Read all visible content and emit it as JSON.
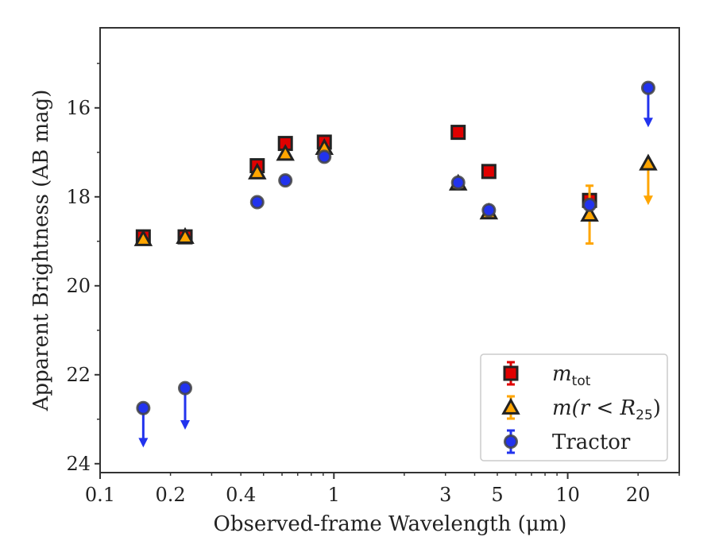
{
  "chart_data": {
    "type": "scatter",
    "xlabel": "Observed-frame Wavelength (μm)",
    "ylabel": "Apparent Brightness (AB mag)",
    "xscale": "log",
    "xlim": [
      0.1,
      30
    ],
    "ylim": [
      24.2,
      14.2
    ],
    "y_inverted": true,
    "xticks": [
      {
        "value": 0.1,
        "label": "0.1"
      },
      {
        "value": 0.2,
        "label": "0.2"
      },
      {
        "value": 0.4,
        "label": "0.4"
      },
      {
        "value": 1,
        "label": "1"
      },
      {
        "value": 3,
        "label": "3"
      },
      {
        "value": 5,
        "label": "5"
      },
      {
        "value": 10,
        "label": "10"
      },
      {
        "value": 20,
        "label": "20"
      }
    ],
    "yticks": [
      {
        "value": 16,
        "label": "16"
      },
      {
        "value": 18,
        "label": "18"
      },
      {
        "value": 20,
        "label": "20"
      },
      {
        "value": 22,
        "label": "22"
      },
      {
        "value": 24,
        "label": "24"
      }
    ],
    "grid": false,
    "legend_position": "lower right",
    "series": [
      {
        "name": "m_tot",
        "legend_text": "m",
        "legend_sub": "tot",
        "marker": "square",
        "color": "#e00000",
        "edge_color": "#222222",
        "errorbar_color": "#e00000",
        "points": [
          {
            "x": 0.153,
            "y": 18.9,
            "yerr": 0.05
          },
          {
            "x": 0.231,
            "y": 18.9,
            "yerr": 0.05
          },
          {
            "x": 0.47,
            "y": 17.3,
            "yerr": 0.05
          },
          {
            "x": 0.62,
            "y": 16.8,
            "yerr": 0.05
          },
          {
            "x": 0.91,
            "y": 16.77,
            "yerr": 0.05
          },
          {
            "x": 3.4,
            "y": 16.55,
            "yerr": 0.05
          },
          {
            "x": 4.6,
            "y": 17.43,
            "yerr": 0.05
          },
          {
            "x": 12.4,
            "y": 18.08,
            "yerr": 0.12
          }
        ]
      },
      {
        "name": "m(r < R25)",
        "legend_text": "m(r < R",
        "legend_sub": "25",
        "legend_close": ")",
        "marker": "triangle",
        "color": "#ffa500",
        "edge_color": "#222222",
        "errorbar_color": "#ffa500",
        "points": [
          {
            "x": 0.153,
            "y": 18.95,
            "yerr": 0.05
          },
          {
            "x": 0.231,
            "y": 18.9,
            "yerr": 0.05
          },
          {
            "x": 0.47,
            "y": 17.45,
            "yerr": 0.05
          },
          {
            "x": 0.62,
            "y": 17.03,
            "yerr": 0.05
          },
          {
            "x": 0.91,
            "y": 16.9,
            "yerr": 0.05
          },
          {
            "x": 3.4,
            "y": 17.7,
            "yerr": 0.05
          },
          {
            "x": 4.6,
            "y": 18.35,
            "yerr": 0.05
          },
          {
            "x": 12.4,
            "y": 18.4,
            "yerr": 0.65
          },
          {
            "x": 22.1,
            "y": 17.25,
            "upper_limit": true,
            "arrow_to": 18.15
          }
        ]
      },
      {
        "name": "Tractor",
        "legend_text": "Tractor",
        "marker": "circle",
        "color": "#2233ee",
        "edge_color": "#444444",
        "errorbar_color": "#2233ee",
        "points": [
          {
            "x": 0.153,
            "y": 22.75,
            "upper_limit": true,
            "arrow_to": 23.6
          },
          {
            "x": 0.231,
            "y": 22.3,
            "upper_limit": true,
            "arrow_to": 23.2
          },
          {
            "x": 0.47,
            "y": 18.12,
            "yerr": 0.03
          },
          {
            "x": 0.62,
            "y": 17.63,
            "yerr": 0.03
          },
          {
            "x": 0.91,
            "y": 17.1,
            "yerr": 0.03
          },
          {
            "x": 3.4,
            "y": 17.68,
            "yerr": 0.03
          },
          {
            "x": 4.6,
            "y": 18.3,
            "yerr": 0.03
          },
          {
            "x": 12.4,
            "y": 18.18,
            "yerr": 0.1
          },
          {
            "x": 22.1,
            "y": 15.55,
            "upper_limit": true,
            "arrow_to": 16.4
          }
        ]
      }
    ]
  }
}
